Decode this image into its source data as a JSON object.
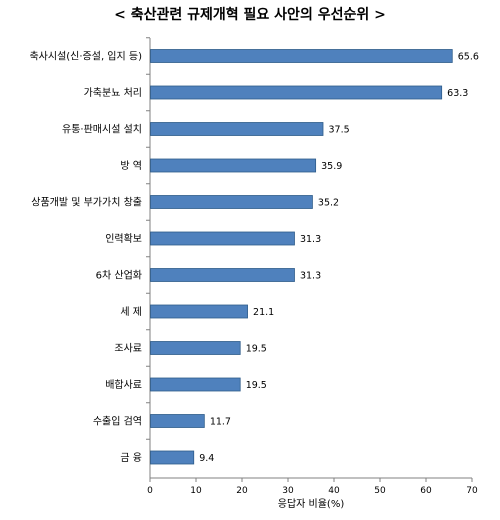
{
  "chart_data": {
    "type": "bar",
    "orientation": "horizontal",
    "title": "< 축산관련 규제개혁 필요 사안의 우선순위 >",
    "categories": [
      "축사시설(신·증설, 입지 등)",
      "가축분뇨 처리",
      "유통·판매시설 설치",
      "방 역",
      "상품개발 및 부가가치 창출",
      "인력확보",
      "6차 산업화",
      "세 제",
      "조사료",
      "배합사료",
      "수출입 검역",
      "금 융"
    ],
    "values": [
      65.6,
      63.3,
      37.5,
      35.9,
      35.2,
      31.3,
      31.3,
      21.1,
      19.5,
      19.5,
      11.7,
      9.4
    ],
    "value_labels": [
      "65.6",
      "63.3",
      "37.5",
      "35.9",
      "35.2",
      "31.3",
      "31.3",
      "21.1",
      "19.5",
      "19.5",
      "11.7",
      "9.4"
    ],
    "xlabel": "응답자 비율(%)",
    "ylabel": "",
    "xlim": [
      0,
      70
    ],
    "xticks": [
      "0",
      "10",
      "20",
      "30",
      "40",
      "50",
      "60",
      "70"
    ],
    "grid": false,
    "bar_color": "#4F81BD",
    "bar_edge_color": "#2E5C8A"
  }
}
